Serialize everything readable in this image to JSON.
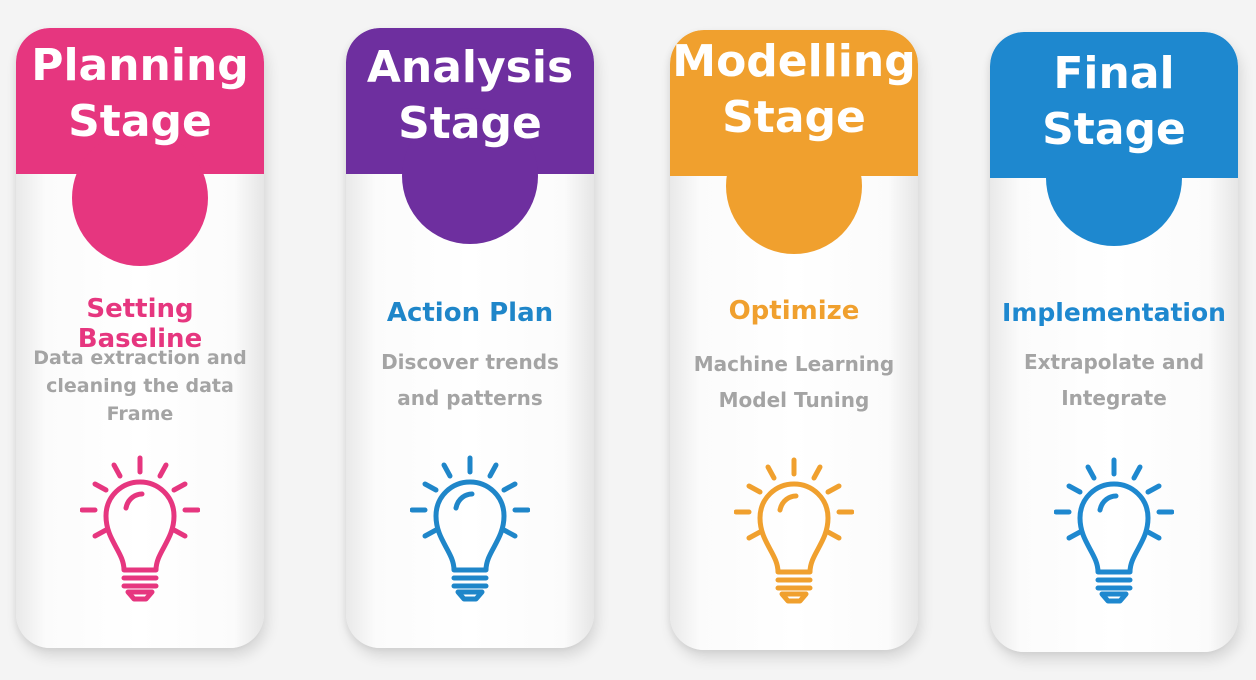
{
  "stages": [
    {
      "title": "Planning\nStage",
      "subtitle": "Setting Baseline",
      "description": "Data extraction and\ncleaning the data\nFrame",
      "color": "#e6367f",
      "icon": "lightbulb-icon"
    },
    {
      "title": "Analysis\nStage",
      "subtitle": "Action Plan",
      "description": "Discover trends\nand patterns",
      "color": "#6e2f9f",
      "accent": "#1f86c9",
      "icon": "lightbulb-icon"
    },
    {
      "title": "Modelling\nStage",
      "subtitle": "Optimize",
      "description": "Machine Learning\nModel Tuning",
      "color": "#f0a02e",
      "icon": "lightbulb-icon"
    },
    {
      "title": "Final\nStage",
      "subtitle": "Implementation",
      "description": "Extrapolate and\nIntegrate",
      "color": "#1e88cf",
      "icon": "lightbulb-icon"
    }
  ]
}
